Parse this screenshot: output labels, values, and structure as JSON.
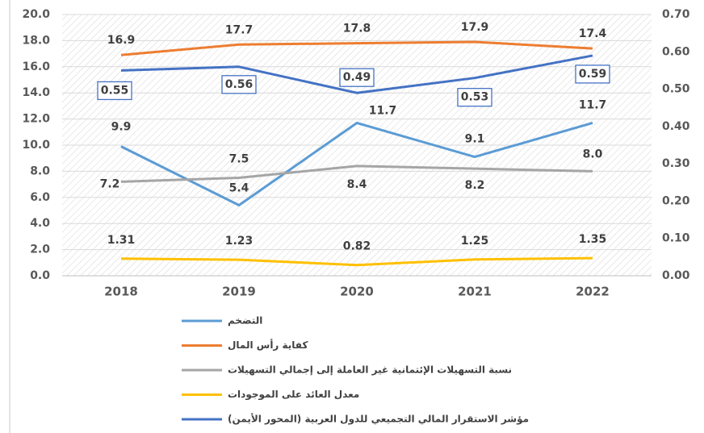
{
  "chart_data": {
    "type": "line",
    "categories": [
      "2018",
      "2019",
      "2020",
      "2021",
      "2022"
    ],
    "series": [
      {
        "name": "التضخم",
        "color": "#5b9bd5",
        "values": [
          9.9,
          5.4,
          11.7,
          9.1,
          11.7
        ]
      },
      {
        "name": "كفاية رأس المال",
        "color": "#ed7d31",
        "values": [
          16.9,
          17.7,
          17.8,
          17.9,
          17.4
        ]
      },
      {
        "name": "نسبة التسهيلات الإئتمانية غير العاملة إلى إجمالي التسهيلات",
        "color": "#a5a5a5",
        "values": [
          7.2,
          7.5,
          8.4,
          8.2,
          8.0
        ],
        "value_labels": [
          "7.2",
          "7.5",
          "8.4",
          "8.2",
          "8.0"
        ]
      },
      {
        "name": "معدل العائد على الموجودات",
        "color": "#ffc000",
        "values": [
          1.31,
          1.23,
          0.82,
          1.25,
          1.35
        ]
      },
      {
        "name": "مؤشر الاستقرار المالي التجميعي للدول العربية (المحور الأيمن)",
        "color": "#4472c4",
        "axis": "y2",
        "values": [
          0.55,
          0.56,
          0.49,
          0.53,
          0.59
        ]
      }
    ],
    "ylim": [
      0,
      20
    ],
    "yticks": [
      {
        "value": 0,
        "label": "0.0"
      },
      {
        "value": 2,
        "label": "2.0"
      },
      {
        "value": 4,
        "label": "4.0"
      },
      {
        "value": 6,
        "label": "6.0"
      },
      {
        "value": 8,
        "label": "8.0"
      },
      {
        "value": 10,
        "label": "10.0"
      },
      {
        "value": 12,
        "label": "12.0"
      },
      {
        "value": 14,
        "label": "14.0"
      },
      {
        "value": 16,
        "label": "16.0"
      },
      {
        "value": 18,
        "label": "18.0"
      },
      {
        "value": 20,
        "label": "20.0"
      }
    ],
    "y2lim": [
      0,
      0.7
    ],
    "y2ticks": [
      {
        "value": 0,
        "label": "0.00"
      },
      {
        "value": 0.1,
        "label": "0.10"
      },
      {
        "value": 0.2,
        "label": "0.20"
      },
      {
        "value": 0.3,
        "label": "0.30"
      },
      {
        "value": 0.4,
        "label": "0.40"
      },
      {
        "value": 0.5,
        "label": "0.50"
      },
      {
        "value": 0.6,
        "label": "0.60"
      },
      {
        "value": 0.7,
        "label": "0.70"
      }
    ],
    "grid": true,
    "legend": "bottom"
  }
}
